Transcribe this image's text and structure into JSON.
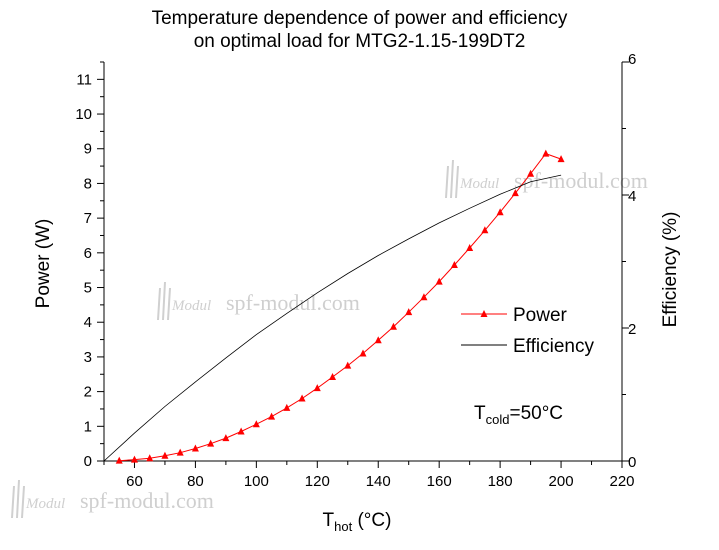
{
  "chart_data": {
    "type": "line",
    "title": [
      "Temperature dependence of power and efficiency",
      "on optimal load for MTG2-1.15-199DT2"
    ],
    "xlabel": {
      "main": "T",
      "sub": "hot",
      "unit": " (°C)"
    },
    "ylabel_left": "Power (W)",
    "ylabel_right": "Efficiency (%)",
    "xlim": [
      50,
      220
    ],
    "ylim_left": [
      0,
      11.5
    ],
    "ylim_right": [
      0,
      6
    ],
    "x_ticks": [
      60,
      80,
      100,
      120,
      140,
      160,
      180,
      200,
      220
    ],
    "y_left_ticks": [
      0,
      1,
      2,
      3,
      4,
      5,
      6,
      7,
      8,
      9,
      10,
      11
    ],
    "y_right_ticks": [
      0,
      2,
      4,
      6
    ],
    "legend_position": "center-right",
    "annotation": {
      "main": "T",
      "sub": "cold",
      "rest": "=50°C"
    },
    "series": [
      {
        "name": "Power",
        "axis": "left",
        "color": "#ff0000",
        "marker": "triangle",
        "x": [
          55,
          60,
          65,
          70,
          75,
          80,
          85,
          90,
          95,
          100,
          105,
          110,
          115,
          120,
          125,
          130,
          135,
          140,
          145,
          150,
          155,
          160,
          165,
          170,
          175,
          180,
          185,
          190,
          195,
          200
        ],
        "y": [
          0.01,
          0.04,
          0.08,
          0.15,
          0.24,
          0.36,
          0.5,
          0.66,
          0.85,
          1.06,
          1.28,
          1.53,
          1.8,
          2.1,
          2.42,
          2.75,
          3.1,
          3.48,
          3.87,
          4.29,
          4.72,
          5.17,
          5.65,
          6.14,
          6.65,
          7.17,
          7.72,
          8.28,
          8.86,
          8.7
        ]
      },
      {
        "name": "Efficiency",
        "axis": "right",
        "color": "#000000",
        "x": [
          50,
          60,
          70,
          80,
          90,
          100,
          110,
          120,
          130,
          140,
          150,
          160,
          170,
          180,
          190,
          200
        ],
        "y": [
          0,
          0.42,
          0.82,
          1.19,
          1.55,
          1.9,
          2.22,
          2.53,
          2.82,
          3.09,
          3.34,
          3.58,
          3.8,
          4.01,
          4.2,
          4.3
        ]
      }
    ]
  },
  "watermark": {
    "logo": "Modul",
    "text": "spf-modul.com"
  }
}
